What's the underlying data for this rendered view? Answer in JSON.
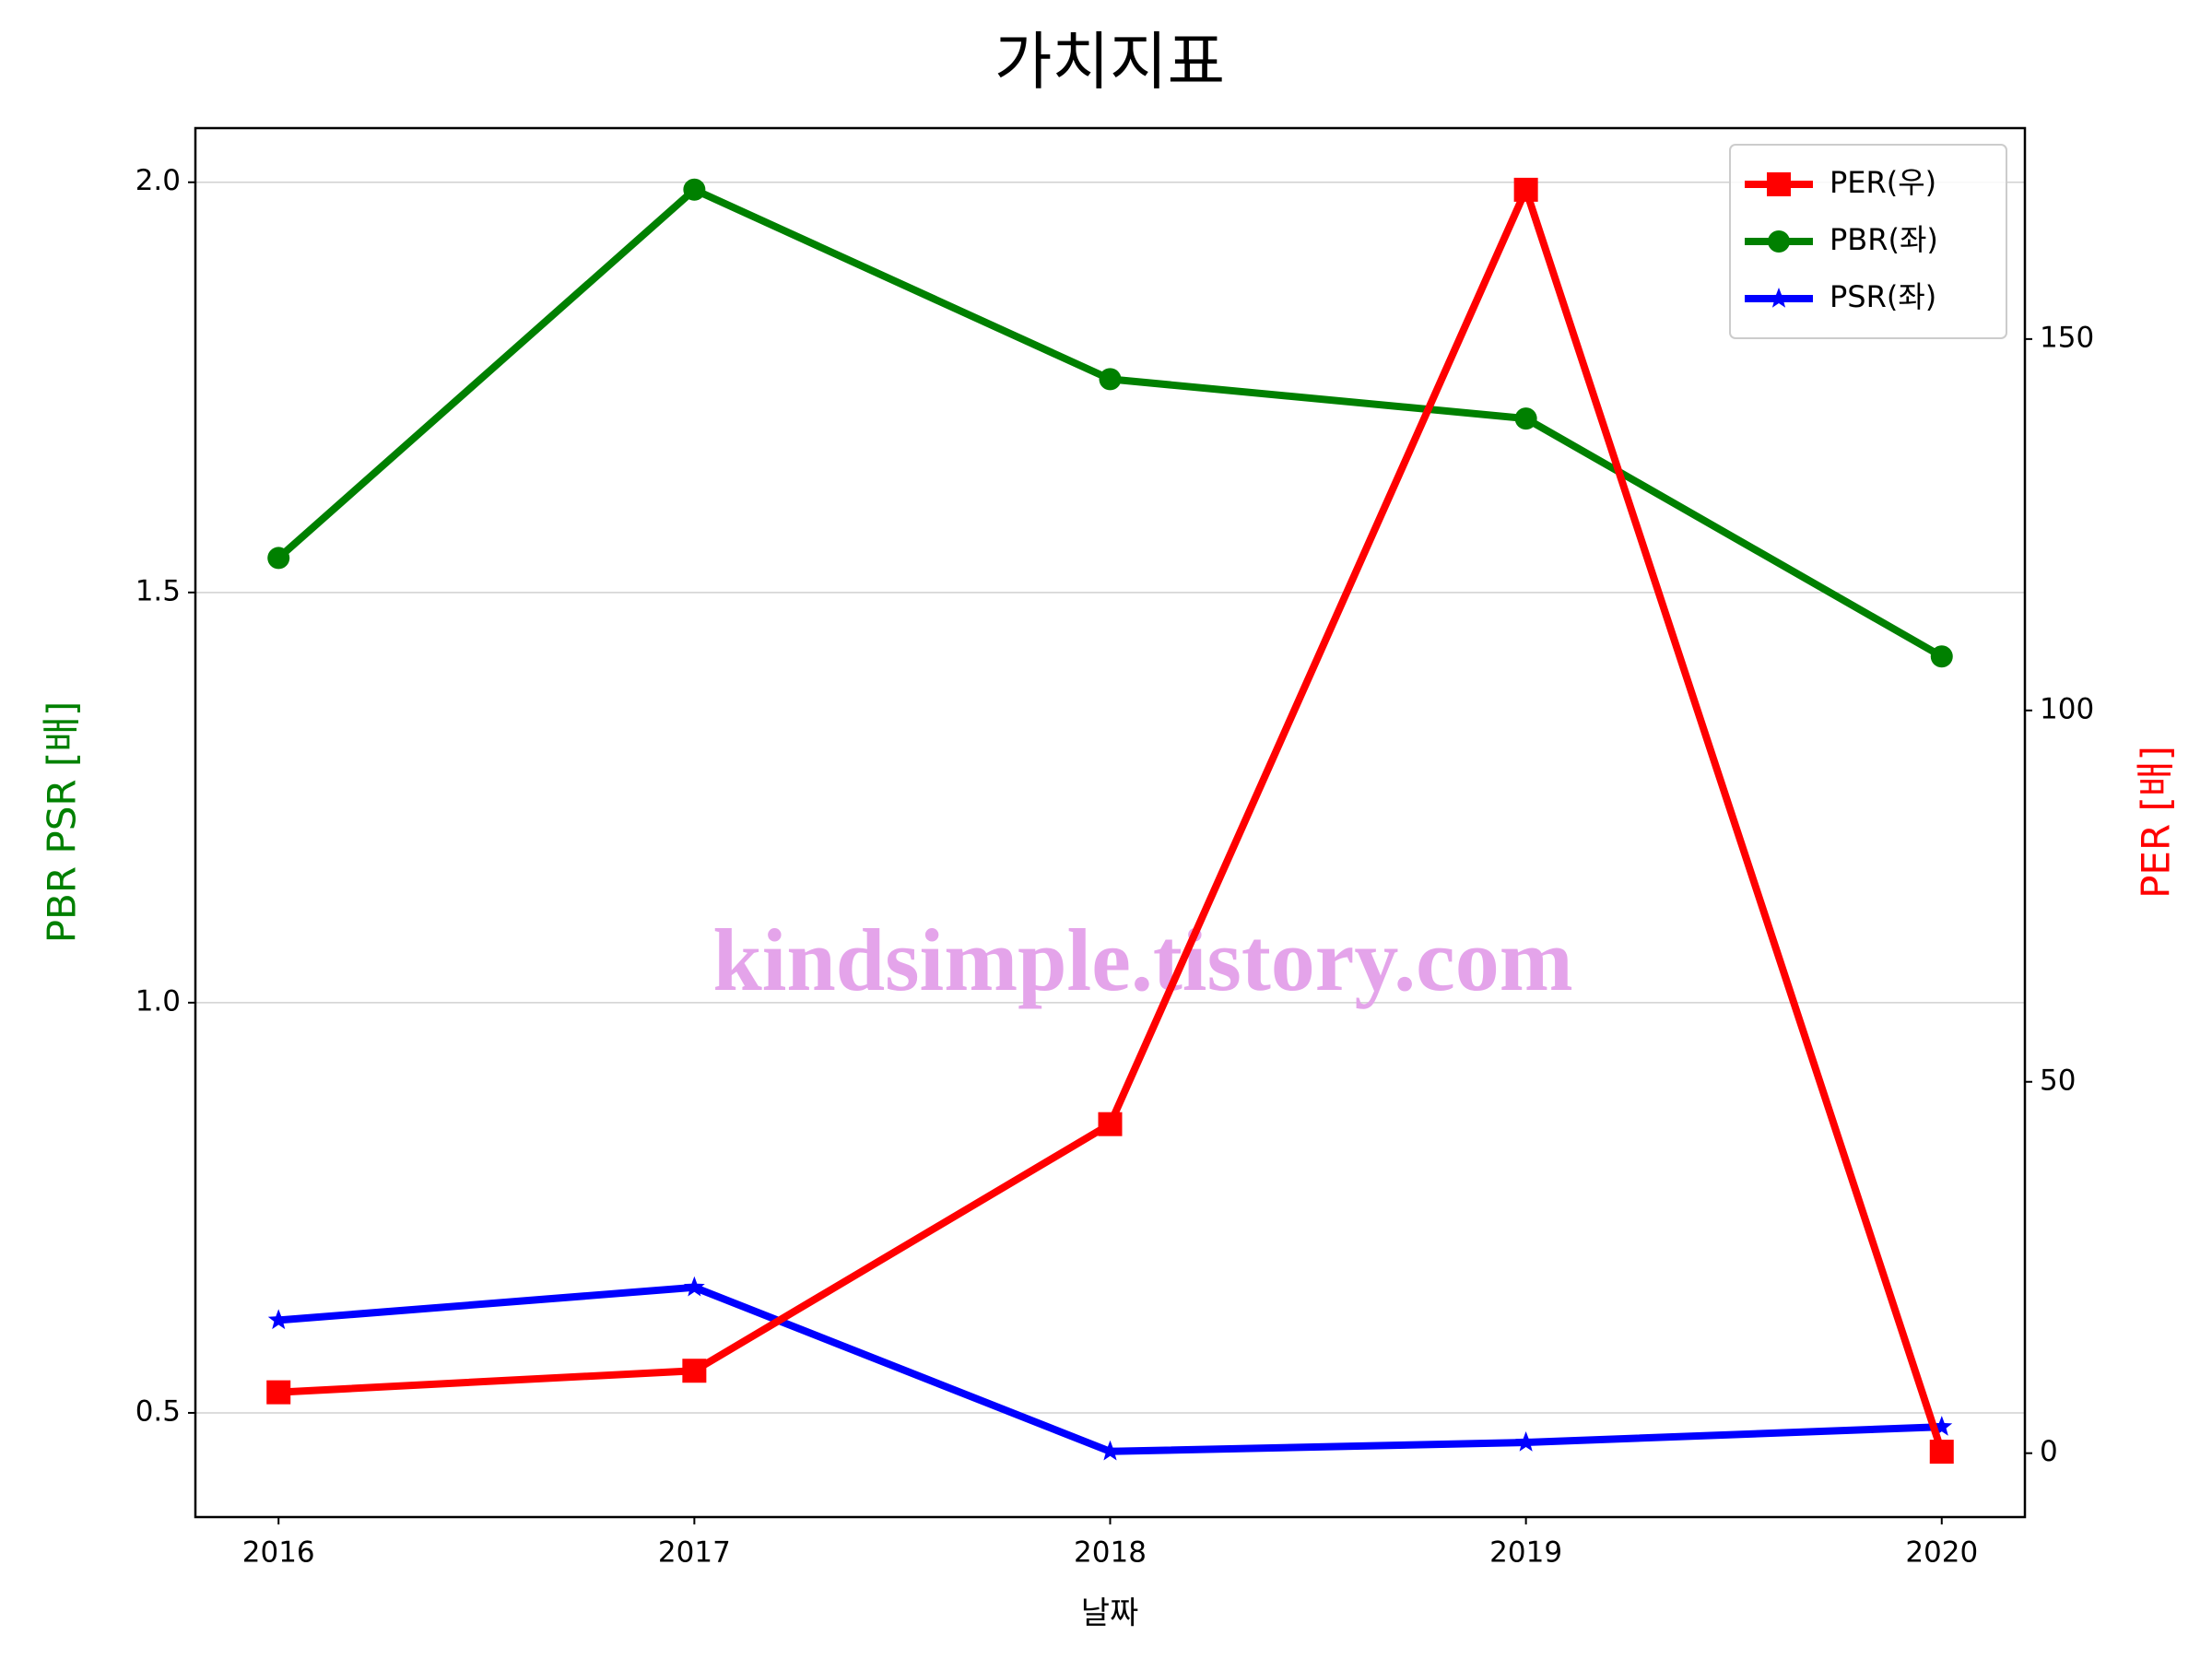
{
  "chart_data": {
    "type": "line",
    "title": "가치지표",
    "x_label": "날짜",
    "y_label": "PBR PSR [배]",
    "y2_label": "PER [배]",
    "annotation": "kindsimple.tistory.com",
    "x": [
      2016,
      2017,
      2018,
      2019,
      2020
    ],
    "xlim": [
      2015.8,
      2020.2
    ],
    "xticks": [
      2016,
      2017,
      2018,
      2019,
      2020
    ],
    "ylim": [
      0.373,
      2.066
    ],
    "yticks": [
      0.5,
      {
        "value": 1.0,
        "label": "1.0"
      },
      1.5,
      {
        "value": 2.0,
        "label": "2.0"
      }
    ],
    "y2lim": [
      -8.6,
      178.4
    ],
    "y2ticks": [
      0,
      50,
      100,
      150
    ],
    "grid": "y",
    "legend": "upper right",
    "y_label_color": "#008000",
    "y2_label_color": "#ff0000",
    "series": [
      {
        "name": "PER(우)",
        "color": "#ff0000",
        "marker": "square",
        "axis": "y2",
        "values": [
          8.2,
          11.1,
          44.3,
          170.1,
          0.2
        ]
      },
      {
        "name": "PBR(좌)",
        "color": "#008000",
        "marker": "circle",
        "values": [
          1.542,
          1.991,
          1.76,
          1.712,
          1.422
        ]
      },
      {
        "name": "PSR(좌)",
        "color": "#0000ff",
        "marker": "star",
        "values": [
          0.613,
          0.653,
          0.453,
          0.464,
          0.483
        ]
      }
    ]
  }
}
